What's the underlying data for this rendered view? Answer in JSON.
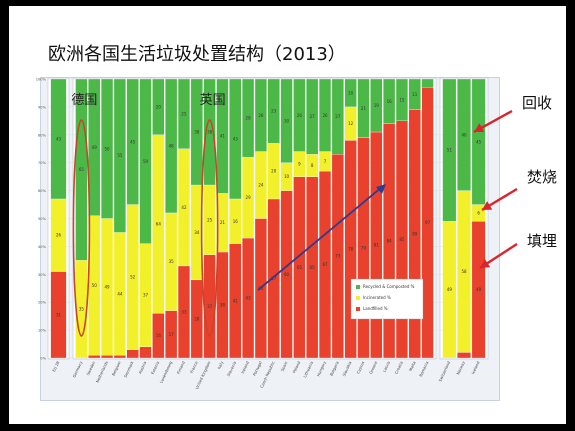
{
  "slide": {
    "title": "欧洲各国生活垃圾处置结构（2013）",
    "side_labels": {
      "recycle": "回收",
      "incinerate": "焚烧",
      "landfill": "填埋"
    },
    "colors": {
      "recycled": "#4cb848",
      "incinerated": "#f2ef2b",
      "landfilled": "#e8412d",
      "arrow_red": "#d7262f",
      "arrow_blue": "#2f3b8f",
      "circle": "#c8442a"
    }
  },
  "chart_data": [
    {
      "type": "bar",
      "stacked": true,
      "ylim": [
        0,
        100
      ],
      "yticks": [
        "0%",
        "10%",
        "20%",
        "30%",
        "40%",
        "50%",
        "60%",
        "70%",
        "80%",
        "90%",
        "100%"
      ],
      "categories": [
        "EU 28"
      ],
      "series": [
        {
          "name": "Landfilled %",
          "values": [
            31
          ]
        },
        {
          "name": "Incinerated %",
          "values": [
            26
          ]
        },
        {
          "name": "Recycled & Composted %",
          "values": [
            43
          ]
        }
      ],
      "data_labels": {
        "Landfilled %": [
          "31"
        ],
        "Incinerated %": [
          "26"
        ],
        "Recycled & Composted %": [
          "43"
        ]
      }
    },
    {
      "type": "bar",
      "stacked": true,
      "ylim": [
        0,
        100
      ],
      "categories": [
        "Germany",
        "Sweden",
        "Netherlands",
        "Belgium",
        "Denmark",
        "Austria",
        "Estonia",
        "Luxembourg",
        "Finland",
        "France",
        "United Kingdom",
        "Italy",
        "Slovenia",
        "Ireland",
        "Portugal",
        "Czech Republic",
        "Spain",
        "Poland",
        "Lithuania",
        "Hungary",
        "Bulgaria",
        "Slovakia",
        "Cyprus",
        "Greece",
        "Latvia",
        "Croatia",
        "Malta",
        "Romania"
      ],
      "series": [
        {
          "name": "Landfilled %",
          "values": [
            0,
            1,
            1,
            1,
            3,
            4,
            16,
            17,
            33,
            28,
            37,
            38,
            41,
            43,
            50,
            57,
            60,
            65,
            65,
            67,
            73,
            78,
            79,
            81,
            84,
            85,
            89,
            97
          ]
        },
        {
          "name": "Incinerated %",
          "values": [
            35,
            50,
            49,
            44,
            52,
            37,
            64,
            35,
            42,
            34,
            25,
            21,
            16,
            29,
            24,
            20,
            10,
            9,
            8,
            7,
            0,
            12,
            0,
            0,
            0,
            0,
            0,
            0
          ]
        },
        {
          "name": "Recycled & Composted %",
          "values": [
            65,
            49,
            50,
            55,
            45,
            59,
            20,
            48,
            25,
            38,
            38,
            41,
            43,
            28,
            26,
            23,
            30,
            26,
            27,
            26,
            27,
            10,
            21,
            19,
            16,
            15,
            11,
            3
          ]
        }
      ],
      "data_labels": {
        "Landfilled %": [
          "",
          "",
          "",
          "",
          "",
          "",
          "16",
          "17",
          "33",
          "28",
          "37",
          "38",
          "41",
          "43",
          "50",
          "57",
          "60",
          "65",
          "65",
          "67",
          "73",
          "78",
          "79",
          "81",
          "84",
          "85",
          "89",
          "97"
        ],
        "Incinerated %": [
          "35",
          "50",
          "49",
          "44",
          "52",
          "37",
          "64",
          "35",
          "42",
          "34",
          "25",
          "21",
          "16",
          "29",
          "24",
          "20",
          "10",
          "9",
          "8",
          "7",
          "",
          "12",
          "",
          "",
          "",
          "",
          "",
          ""
        ],
        "Recycled & Composted %": [
          "65",
          "49",
          "50",
          "55",
          "45",
          "59",
          "20",
          "48",
          "25",
          "38",
          "38",
          "41",
          "43",
          "28",
          "26",
          "23",
          "30",
          "26",
          "27",
          "26",
          "27",
          "10",
          "21",
          "19",
          "16",
          "15",
          "11",
          ""
        ]
      },
      "annotations": [
        {
          "text": "德国",
          "target": "Germany"
        },
        {
          "text": "英国",
          "target": "United Kingdom"
        }
      ],
      "legend": {
        "placement": "inside-right",
        "items": [
          "Recycled & Composted %",
          "Incinerated %",
          "Landfilled %"
        ]
      }
    },
    {
      "type": "bar",
      "stacked": true,
      "ylim": [
        0,
        100
      ],
      "categories": [
        "Switzerland",
        "Norway",
        "Iceland"
      ],
      "series": [
        {
          "name": "Landfilled %",
          "values": [
            0,
            2,
            49
          ]
        },
        {
          "name": "Incinerated %",
          "values": [
            49,
            58,
            6
          ]
        },
        {
          "name": "Recycled & Composted %",
          "values": [
            51,
            40,
            45
          ]
        }
      ],
      "data_labels": {
        "Landfilled %": [
          "",
          "",
          "49"
        ],
        "Incinerated %": [
          "49",
          "58",
          "6"
        ],
        "Recycled & Composted %": [
          "51",
          "40",
          "45"
        ]
      }
    }
  ]
}
